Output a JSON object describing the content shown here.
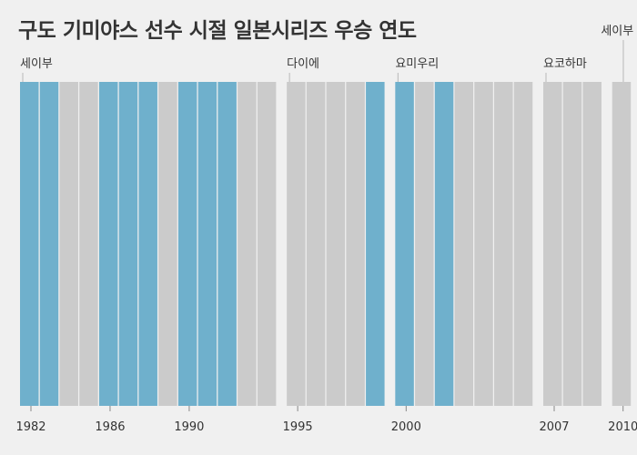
{
  "chart_data": {
    "type": "bar",
    "title": "구도 기미야스 선수 시절 일본시리즈 우승 연도",
    "xlabel": "",
    "ylabel": "",
    "x_ticks": [
      "1982",
      "1986",
      "1990",
      "1995",
      "2000",
      "2007",
      "2010"
    ],
    "teams": [
      {
        "name": "세이부",
        "start": 1982,
        "end": 1994
      },
      {
        "name": "다이에",
        "start": 1995,
        "end": 1999
      },
      {
        "name": "요미우리",
        "start": 2000,
        "end": 2006
      },
      {
        "name": "요코하마",
        "start": 2007,
        "end": 2009
      },
      {
        "name": "세이부",
        "start": 2010,
        "end": 2010
      }
    ],
    "years": [
      {
        "year": 1982,
        "won": true
      },
      {
        "year": 1983,
        "won": true
      },
      {
        "year": 1984,
        "won": false
      },
      {
        "year": 1985,
        "won": false
      },
      {
        "year": 1986,
        "won": true
      },
      {
        "year": 1987,
        "won": true
      },
      {
        "year": 1988,
        "won": true
      },
      {
        "year": 1989,
        "won": false
      },
      {
        "year": 1990,
        "won": true
      },
      {
        "year": 1991,
        "won": true
      },
      {
        "year": 1992,
        "won": true
      },
      {
        "year": 1993,
        "won": false
      },
      {
        "year": 1994,
        "won": false
      },
      {
        "year": 1995,
        "won": false
      },
      {
        "year": 1996,
        "won": false
      },
      {
        "year": 1997,
        "won": false
      },
      {
        "year": 1998,
        "won": false
      },
      {
        "year": 1999,
        "won": true
      },
      {
        "year": 2000,
        "won": true
      },
      {
        "year": 2001,
        "won": false
      },
      {
        "year": 2002,
        "won": true
      },
      {
        "year": 2003,
        "won": false
      },
      {
        "year": 2004,
        "won": false
      },
      {
        "year": 2005,
        "won": false
      },
      {
        "year": 2006,
        "won": false
      },
      {
        "year": 2007,
        "won": false
      },
      {
        "year": 2008,
        "won": false
      },
      {
        "year": 2009,
        "won": false
      },
      {
        "year": 2010,
        "won": false
      }
    ],
    "colors": {
      "won": "#6fb0cc",
      "not_won": "#cbcbcb"
    }
  }
}
